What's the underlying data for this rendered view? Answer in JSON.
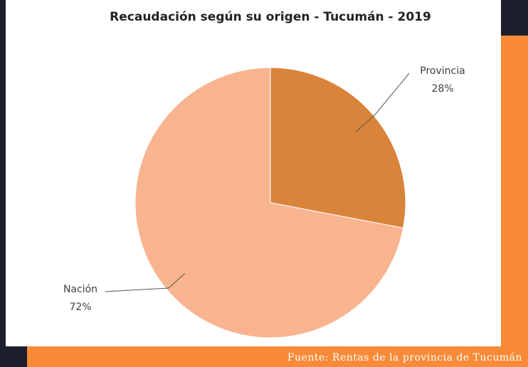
{
  "chart_data": {
    "type": "pie",
    "title": "Recaudación según su origen - Tucumán - 2019",
    "categories": [
      "Provincia",
      "Nación"
    ],
    "values": [
      28,
      72
    ],
    "value_labels": [
      "28%",
      "72%"
    ],
    "colors": [
      "#d9843b",
      "#f8b48f"
    ],
    "source": "Fuente: Rentas de la provincia de Tucumán"
  }
}
